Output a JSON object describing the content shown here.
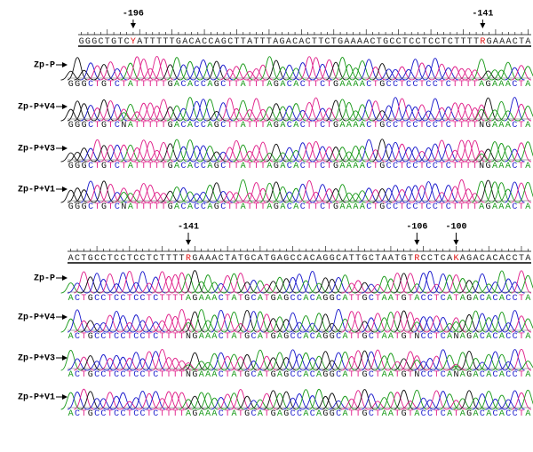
{
  "panels": [
    {
      "markers": [
        "-196",
        "-141"
      ],
      "reference": "GGGCTGTCYATTTTTGACACCAGCTTATTTAGACACTTCTGAAAACTGCCTCCTCCTCTTTTRGAAACTA",
      "tracks": [
        {
          "label": "Zp-P",
          "sequence": "GGGCTGTCTATTTTTGACACCAGCTTATTTAGACACTTCTGAAAACTGCCTCCTCCTCTTTTAGAAACTA"
        },
        {
          "label": "Zp-P+V4",
          "sequence": "GGGCTGTCNATTTTTGACACCAGCTTATTTAGACACTTCTGAAAACTGCCTCCTCCTCTTTTNGAAACTA"
        },
        {
          "label": "Zp-P+V3",
          "sequence": "GGGCTGTCTATTTTTGACACCAGCTTATTTAGACACTTCTGAAAACTGCCTCCTCCTCTTTTNGAAACTA"
        },
        {
          "label": "Zp-P+V1",
          "sequence": "GGGCTGTCNATTTTTGACACCAGCTTATTTAGACACTTCTGAAAACTGCCTCCTCCTCTTTTAGAAACTA"
        }
      ]
    },
    {
      "markers": [
        "-141",
        "-106",
        "-100"
      ],
      "reference": "ACTGCCTCCTCCTCTTTTRGAAACTATGCATGAGCCACAGGCATTGCTAATGTRCCTCAKAGACACACCTA",
      "tracks": [
        {
          "label": "Zp-P",
          "sequence": "ACTGCCTCCTCCTCTTTTAGAAACTATGCATGAGCCACAGGCATTGCTAATGTACCTCATAGACACACCTA"
        },
        {
          "label": "Zp-P+V4",
          "sequence": "ACTGCCTCCTCCTCTTTTNGAAACTATGCATGAGCCACAGGCATTGCTAATGTNCCTCANAGACACACCTA"
        },
        {
          "label": "Zp-P+V3",
          "sequence": "ACTGCCTCCTCCTCTTTTNGAAACTATGCATGAGCCACAGGCATTGCTAATGTNCCTCANAGACACACCTA"
        },
        {
          "label": "Zp-P+V1",
          "sequence": "ACTGCCTCCTCCTCTTTTAGAAACTATGCATGAGCCACAGGCATTGCTAATGTACCTCATAGACACACCTA"
        }
      ]
    }
  ]
}
